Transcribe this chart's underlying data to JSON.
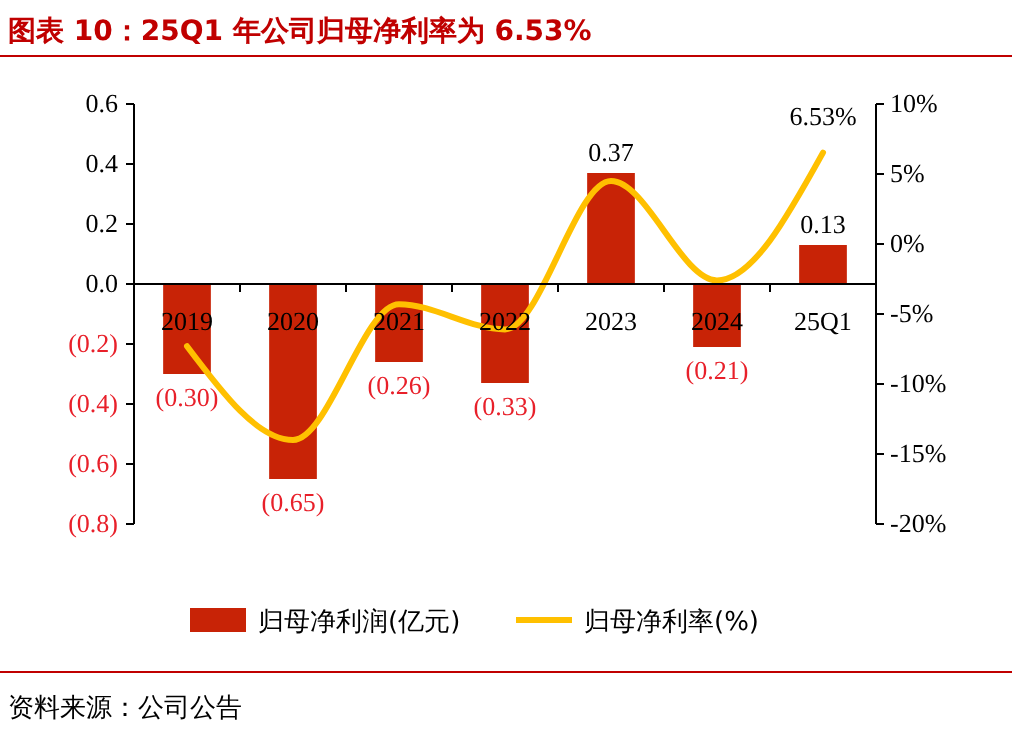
{
  "chart_data": {
    "type": "bar",
    "title": "图表 10：25Q1 年公司归母净利率为 6.53%",
    "categories": [
      "2019",
      "2020",
      "2021",
      "2022",
      "2023",
      "2024",
      "25Q1"
    ],
    "series": [
      {
        "name": "归母净利润(亿元)",
        "color": "#c82306",
        "values": [
          -0.3,
          -0.65,
          -0.26,
          -0.33,
          0.37,
          -0.21,
          0.13
        ],
        "value_labels": [
          "(0.30)",
          "(0.65)",
          "(0.26)",
          "(0.33)",
          "0.37",
          "(0.21)",
          "0.13"
        ]
      },
      {
        "name": "归母净利率(%)",
        "type": "line",
        "axis": "y2",
        "color": "#ffc000",
        "values": [
          -7.3,
          -14.0,
          -4.3,
          -6.1,
          4.5,
          -2.6,
          6.53
        ],
        "value_labels": [
          null,
          null,
          null,
          null,
          null,
          null,
          "6.53%"
        ]
      }
    ],
    "ylim": [
      -0.8,
      0.6
    ],
    "yticks": [
      {
        "value": -0.8,
        "label": "(0.8)"
      },
      {
        "value": -0.6,
        "label": "(0.6)"
      },
      {
        "value": -0.4,
        "label": "(0.4)"
      },
      {
        "value": -0.2,
        "label": "(0.2)"
      },
      {
        "value": 0,
        "label": "0.0"
      },
      0.2,
      0.4,
      0.6
    ],
    "y2lim": [
      -20,
      10
    ],
    "y2ticks": [
      {
        "value": -20,
        "label": "-20%"
      },
      {
        "value": -15,
        "label": "-15%"
      },
      {
        "value": -10,
        "label": "-10%"
      },
      {
        "value": -5,
        "label": "-5%"
      },
      {
        "value": 0,
        "label": "0%"
      },
      {
        "value": 5,
        "label": "5%"
      },
      {
        "value": 10,
        "label": "10%"
      }
    ],
    "legend": "bottom",
    "grid": false,
    "marker": "none",
    "line_style": "solid",
    "annotations": [
      "资料来源：公司公告"
    ]
  }
}
